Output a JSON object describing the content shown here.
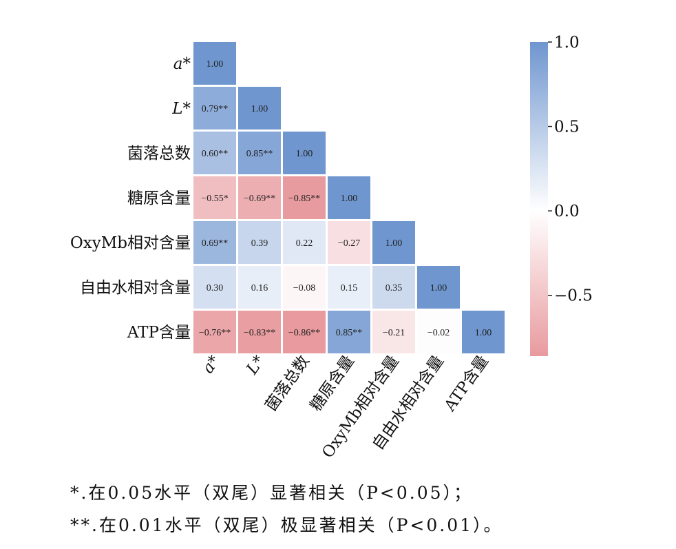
{
  "chart_data": {
    "type": "heatmap",
    "title": "",
    "variables": [
      "a*",
      "L*",
      "菌落总数",
      "糖原含量",
      "OxyMb相对含量",
      "自由水相对含量",
      "ATP含量"
    ],
    "matrix": [
      [
        1.0
      ],
      [
        0.79,
        1.0
      ],
      [
        0.6,
        0.85,
        1.0
      ],
      [
        -0.55,
        -0.69,
        -0.85,
        1.0
      ],
      [
        0.69,
        0.39,
        0.22,
        -0.27,
        1.0
      ],
      [
        0.3,
        0.16,
        -0.08,
        0.15,
        0.35,
        1.0
      ],
      [
        -0.76,
        -0.83,
        -0.86,
        0.85,
        -0.21,
        -0.02,
        1.0
      ]
    ],
    "labels": [
      [
        "1.00"
      ],
      [
        "0.79**",
        "1.00"
      ],
      [
        "0.60**",
        "0.85**",
        "1.00"
      ],
      [
        "−0.55*",
        "−0.69**",
        "−0.85**",
        "1.00"
      ],
      [
        "0.69**",
        "0.39",
        "0.22",
        "−0.27",
        "1.00"
      ],
      [
        "0.30",
        "0.16",
        "−0.08",
        "0.15",
        "0.35",
        "1.00"
      ],
      [
        "−0.76**",
        "−0.83**",
        "−0.86**",
        "0.85**",
        "−0.21",
        "−0.02",
        "1.00"
      ]
    ],
    "colorbar": {
      "range": [
        -0.86,
        1.0
      ],
      "ticks": [
        1.0,
        0.5,
        0.0,
        -0.5
      ],
      "tick_labels": [
        "1.0",
        "0.5",
        "0.0",
        "−0.5"
      ],
      "colors": {
        "negative": "#e89a9e",
        "zero": "#ffffff",
        "positive": "#6f96cf"
      }
    }
  },
  "footnotes": {
    "line1": "*.在0.05水平（双尾）显著相关（P<0.05）；",
    "line2": "**.在0.01水平（双尾）极显著相关（P<0.01）。"
  }
}
